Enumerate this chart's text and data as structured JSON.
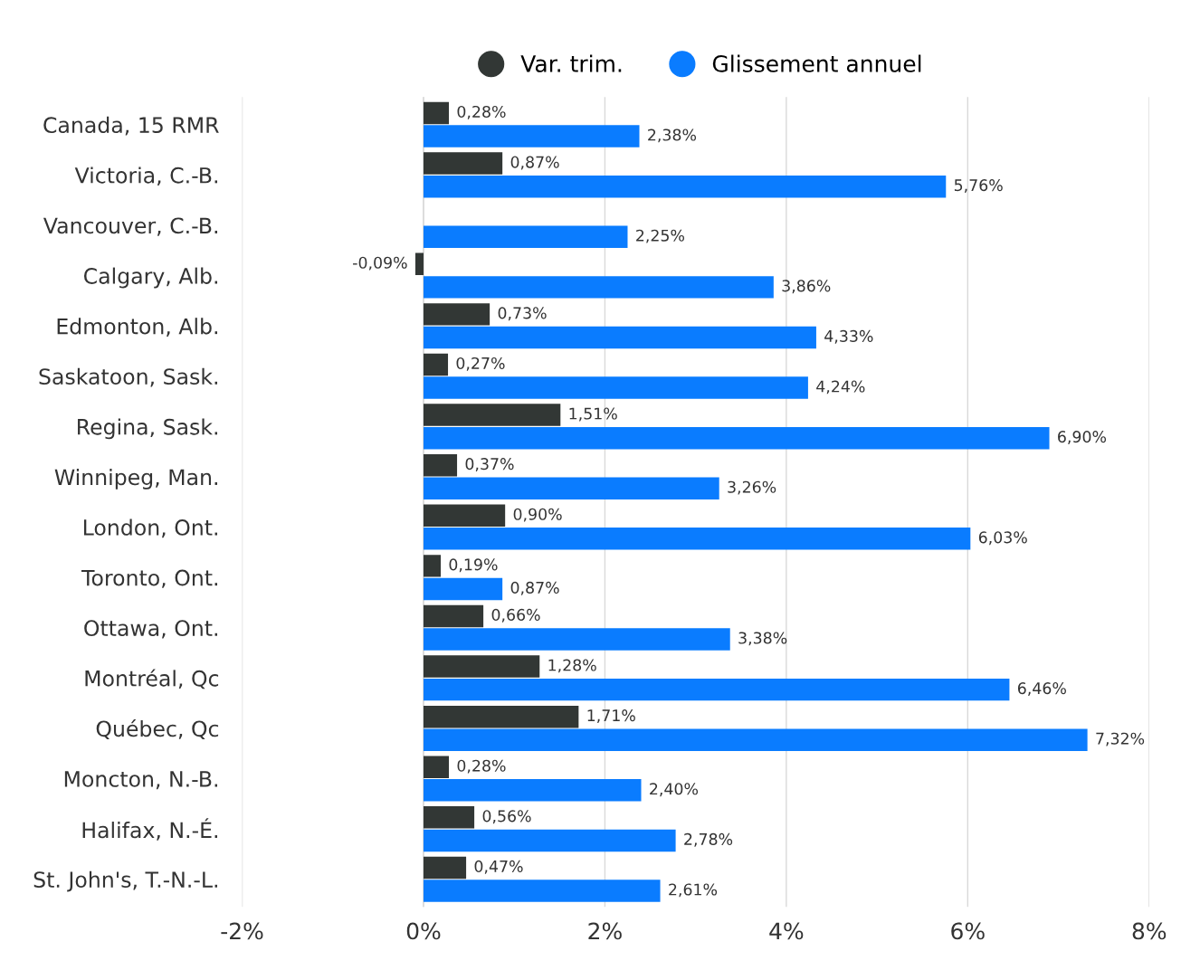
{
  "chart_data": {
    "type": "bar",
    "orientation": "horizontal",
    "categories": [
      "Canada, 15 RMR",
      "Victoria, C.-B.",
      "Vancouver, C.-B.",
      "Calgary, Alb.",
      "Edmonton, Alb.",
      "Saskatoon, Sask.",
      "Regina, Sask.",
      "Winnipeg, Man.",
      "London, Ont.",
      "Toronto, Ont.",
      "Ottawa, Ont.",
      "Montréal, Qc",
      "Québec, Qc",
      "Moncton, N.-B.",
      "Halifax, N.-É.",
      "St. John's, T.-N.-L."
    ],
    "series": [
      {
        "name": "Var. trim.",
        "color": "#323735",
        "values": [
          0.28,
          0.87,
          null,
          -0.09,
          0.73,
          0.27,
          1.51,
          0.37,
          0.9,
          0.19,
          0.66,
          1.28,
          1.71,
          0.28,
          0.56,
          0.47
        ],
        "value_labels": [
          "0,28%",
          "0,87%",
          null,
          "-0,09%",
          "0,73%",
          "0,27%",
          "1,51%",
          "0,37%",
          "0,90%",
          "0,19%",
          "0,66%",
          "1,28%",
          "1,71%",
          "0,28%",
          "0,56%",
          "0,47%"
        ]
      },
      {
        "name": "Glissement annuel",
        "color": "#0a7cff",
        "values": [
          2.38,
          5.76,
          2.25,
          3.86,
          4.33,
          4.24,
          6.9,
          3.26,
          6.03,
          0.87,
          3.38,
          6.46,
          7.32,
          2.4,
          2.78,
          2.61
        ],
        "value_labels": [
          "2,38%",
          "5,76%",
          "2,25%",
          "3,86%",
          "4,33%",
          "4,24%",
          "6,90%",
          "3,26%",
          "6,03%",
          "0,87%",
          "3,38%",
          "6,46%",
          "7,32%",
          "2,40%",
          "2,78%",
          "2,61%"
        ]
      }
    ],
    "xlim": [
      -2,
      8
    ],
    "xticks": [
      {
        "value": -2,
        "label": "-2%"
      },
      {
        "value": 0,
        "label": "0%"
      },
      {
        "value": 2,
        "label": "2%"
      },
      {
        "value": 4,
        "label": "4%"
      },
      {
        "value": 6,
        "label": "6%"
      },
      {
        "value": 8,
        "label": "8%"
      }
    ],
    "grid": "x",
    "legend": "top",
    "marker": "circle"
  }
}
